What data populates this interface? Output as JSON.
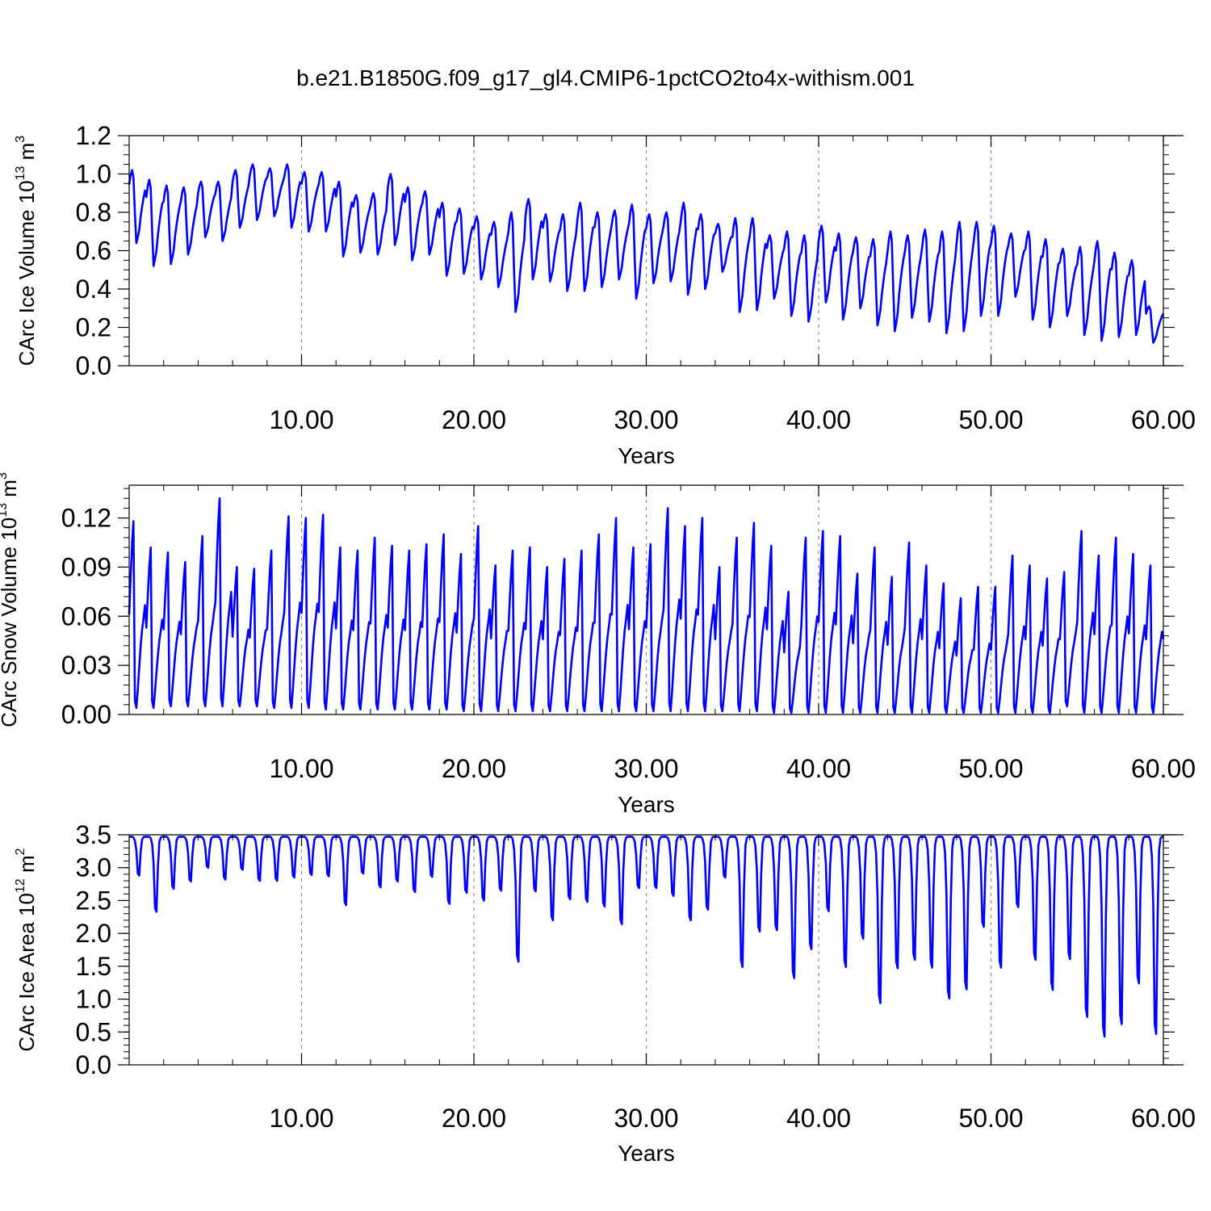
{
  "title": "b.e21.B1850G.f09_g17_gl4.CMIP6-1pctCO2to4x-withism.001",
  "line_color": "#0000ff",
  "chart_data": [
    {
      "type": "line",
      "xlabel": "Years",
      "ylabel": {
        "base": "CArc Ice Volume 10",
        "exp": "13",
        "unit": " m",
        "unit_exp": "3"
      },
      "xlim": [
        0,
        60
      ],
      "ylim": [
        0,
        1.2
      ],
      "xticks": [
        10,
        20,
        30,
        40,
        50,
        60
      ],
      "xtick_labels": [
        "10.00",
        "20.00",
        "30.00",
        "40.00",
        "50.00",
        "60.00"
      ],
      "yticks": [
        0,
        0.2,
        0.4,
        0.6,
        0.8,
        1.0,
        1.2
      ],
      "ytick_labels": [
        "0.0",
        "0.2",
        "0.4",
        "0.6",
        "0.8",
        "1.0",
        "1.2"
      ],
      "grid": "dashed vertical at major x ticks",
      "series": [
        {
          "frequency": "monthly, 1 cycle per year",
          "annual_max": [
            1.02,
            0.97,
            0.94,
            0.93,
            0.96,
            0.96,
            1.02,
            1.05,
            1.03,
            1.05,
            1.01,
            1.01,
            0.96,
            0.89,
            0.9,
            1.0,
            0.93,
            0.91,
            0.85,
            0.82,
            0.78,
            0.75,
            0.8,
            0.87,
            0.79,
            0.79,
            0.85,
            0.8,
            0.81,
            0.84,
            0.79,
            0.8,
            0.85,
            0.79,
            0.74,
            0.77,
            0.77,
            0.68,
            0.7,
            0.68,
            0.73,
            0.69,
            0.67,
            0.66,
            0.7,
            0.68,
            0.71,
            0.7,
            0.75,
            0.75,
            0.73,
            0.69,
            0.7,
            0.66,
            0.61,
            0.62,
            0.65,
            0.59,
            0.55,
            0.31
          ],
          "annual_min": [
            0.64,
            0.52,
            0.53,
            0.58,
            0.67,
            0.65,
            0.72,
            0.76,
            0.78,
            0.72,
            0.7,
            0.7,
            0.57,
            0.59,
            0.58,
            0.63,
            0.55,
            0.58,
            0.47,
            0.48,
            0.45,
            0.41,
            0.28,
            0.45,
            0.44,
            0.39,
            0.39,
            0.41,
            0.45,
            0.35,
            0.43,
            0.44,
            0.37,
            0.4,
            0.49,
            0.28,
            0.29,
            0.35,
            0.26,
            0.23,
            0.33,
            0.24,
            0.3,
            0.21,
            0.18,
            0.25,
            0.23,
            0.17,
            0.18,
            0.26,
            0.26,
            0.36,
            0.24,
            0.2,
            0.26,
            0.16,
            0.13,
            0.15,
            0.16,
            0.12
          ]
        }
      ]
    },
    {
      "type": "line",
      "xlabel": "Years",
      "ylabel": {
        "base": "CArc Snow Volume 10",
        "exp": "13",
        "unit": " m",
        "unit_exp": "3"
      },
      "xlim": [
        0,
        60
      ],
      "ylim": [
        0,
        0.14
      ],
      "xticks": [
        10,
        20,
        30,
        40,
        50,
        60
      ],
      "xtick_labels": [
        "10.00",
        "20.00",
        "30.00",
        "40.00",
        "50.00",
        "60.00"
      ],
      "yticks": [
        0,
        0.03,
        0.06,
        0.09,
        0.12
      ],
      "ytick_labels": [
        "0.00",
        "0.03",
        "0.06",
        "0.09",
        "0.12"
      ],
      "grid": "dashed vertical at major x ticks",
      "series": [
        {
          "frequency": "monthly, 1 cycle per year",
          "annual_max": [
            0.118,
            0.102,
            0.099,
            0.093,
            0.109,
            0.132,
            0.09,
            0.089,
            0.1,
            0.121,
            0.12,
            0.122,
            0.102,
            0.1,
            0.108,
            0.103,
            0.1,
            0.104,
            0.11,
            0.098,
            0.115,
            0.091,
            0.1,
            0.102,
            0.09,
            0.095,
            0.1,
            0.11,
            0.12,
            0.102,
            0.104,
            0.126,
            0.115,
            0.12,
            0.09,
            0.108,
            0.117,
            0.103,
            0.075,
            0.108,
            0.112,
            0.109,
            0.086,
            0.102,
            0.084,
            0.105,
            0.091,
            0.08,
            0.071,
            0.078,
            0.078,
            0.097,
            0.091,
            0.083,
            0.087,
            0.112,
            0.097,
            0.108,
            0.098,
            0.091
          ],
          "annual_min": [
            0.004,
            0.004,
            0.005,
            0.005,
            0.005,
            0.005,
            0.005,
            0.005,
            0.004,
            0.004,
            0.004,
            0.003,
            0.003,
            0.003,
            0.003,
            0.003,
            0.003,
            0.003,
            0.003,
            0.002,
            0.002,
            0.002,
            0.002,
            0.002,
            0.002,
            0.002,
            0.002,
            0.002,
            0.002,
            0.002,
            0.002,
            0.002,
            0.002,
            0.002,
            0.002,
            0.002,
            0.002,
            0.001,
            0.001,
            0.001,
            0.001,
            0.001,
            0.001,
            0.001,
            0.001,
            0.001,
            0.001,
            0.001,
            0.001,
            0.001,
            0.001,
            0.001,
            0.001,
            0.001,
            0.005,
            0.001,
            0.001,
            0.001,
            0.001,
            0.001
          ]
        }
      ]
    },
    {
      "type": "line",
      "xlabel": "Years",
      "ylabel": {
        "base": "CArc Ice Area 10",
        "exp": "12",
        "unit": " m",
        "unit_exp": "2"
      },
      "xlim": [
        0,
        60
      ],
      "ylim": [
        0,
        3.5
      ],
      "xticks": [
        10,
        20,
        30,
        40,
        50,
        60
      ],
      "xtick_labels": [
        "10.00",
        "20.00",
        "30.00",
        "40.00",
        "50.00",
        "60.00"
      ],
      "yticks": [
        0,
        0.5,
        1.0,
        1.5,
        2.0,
        2.5,
        3.0,
        3.5
      ],
      "ytick_labels": [
        "0.0",
        "0.5",
        "1.0",
        "1.5",
        "2.0",
        "2.5",
        "3.0",
        "3.5"
      ],
      "grid": "dashed vertical at major x ticks",
      "series": [
        {
          "frequency": "monthly, 1 cycle per year",
          "annual_max": 3.47,
          "annual_min": [
            2.88,
            2.33,
            2.68,
            2.79,
            3.0,
            2.82,
            2.97,
            2.8,
            2.8,
            2.85,
            2.89,
            2.87,
            2.43,
            2.91,
            2.7,
            2.79,
            2.63,
            2.86,
            2.45,
            2.62,
            2.5,
            2.65,
            1.57,
            2.64,
            2.2,
            2.52,
            2.48,
            2.41,
            2.14,
            2.69,
            2.69,
            2.57,
            2.2,
            2.36,
            2.85,
            1.49,
            2.03,
            2.05,
            1.32,
            1.76,
            2.34,
            1.49,
            1.92,
            0.94,
            1.47,
            1.6,
            1.48,
            1.01,
            1.15,
            2.1,
            1.48,
            2.4,
            1.6,
            1.14,
            1.61,
            0.73,
            0.43,
            0.62,
            1.24,
            0.47
          ]
        }
      ]
    }
  ]
}
